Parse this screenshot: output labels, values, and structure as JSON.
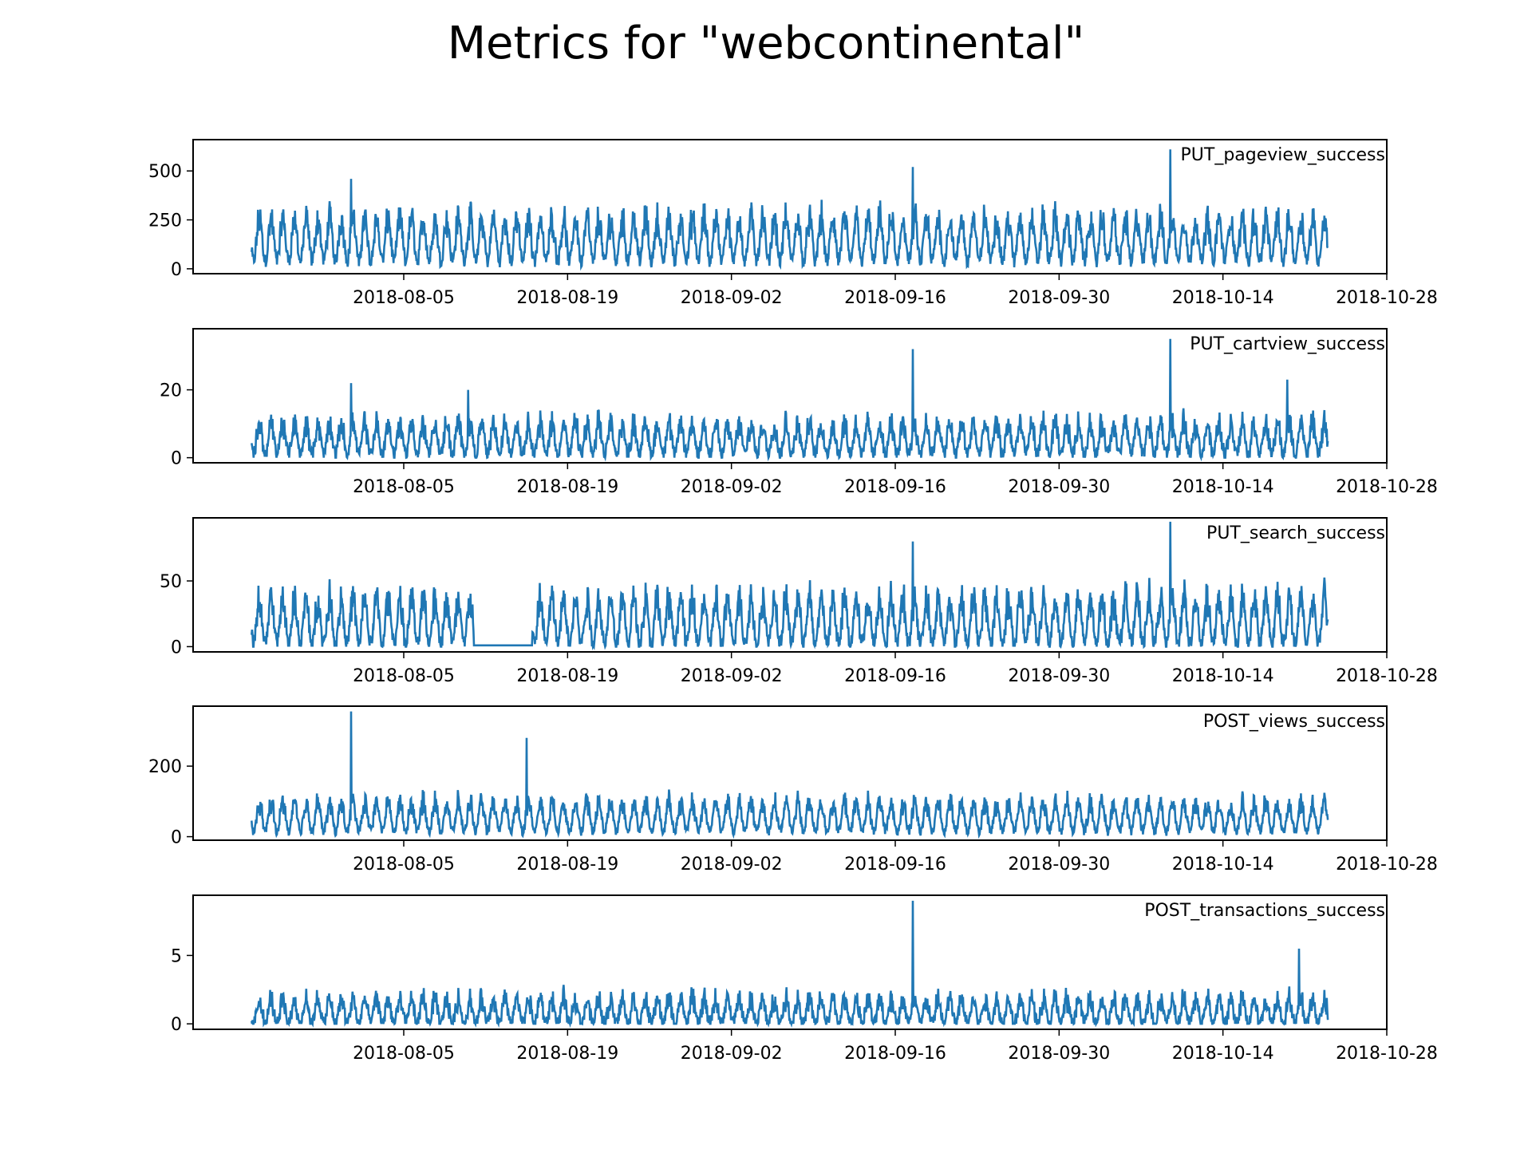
{
  "title": "Metrics for \"webcontinental\"",
  "chart_data": [
    {
      "type": "line",
      "series": [
        {
          "name": "PUT_pageview_success"
        }
      ],
      "x_range": [
        "2018-07-23",
        "2018-10-23"
      ],
      "xlim": [
        "2018-07-18",
        "2018-10-28"
      ],
      "x_ticks": [
        "2018-08-05",
        "2018-08-19",
        "2018-09-02",
        "2018-09-16",
        "2018-09-30",
        "2018-10-14",
        "2018-10-28"
      ],
      "y_ticks": [
        0,
        250,
        500
      ],
      "ylim": [
        -25,
        660
      ],
      "baseline": 40,
      "daily_peak": 240,
      "noise": 70,
      "spikes": [
        [
          "2018-07-31",
          460
        ],
        [
          "2018-09-17",
          520
        ],
        [
          "2018-10-09",
          610
        ]
      ],
      "gaps": [],
      "color": "#1f77b4",
      "legend": "top-right"
    },
    {
      "type": "line",
      "series": [
        {
          "name": "PUT_cartview_success"
        }
      ],
      "x_range": [
        "2018-07-23",
        "2018-10-23"
      ],
      "xlim": [
        "2018-07-18",
        "2018-10-28"
      ],
      "x_ticks": [
        "2018-08-05",
        "2018-08-19",
        "2018-09-02",
        "2018-09-16",
        "2018-09-30",
        "2018-10-14",
        "2018-10-28"
      ],
      "y_ticks": [
        0,
        20
      ],
      "ylim": [
        -1.5,
        38
      ],
      "baseline": 1,
      "daily_peak": 10,
      "noise": 4,
      "spikes": [
        [
          "2018-07-31",
          22
        ],
        [
          "2018-08-10",
          20
        ],
        [
          "2018-09-17",
          32
        ],
        [
          "2018-10-09",
          35
        ],
        [
          "2018-10-19",
          23
        ]
      ],
      "gaps": [],
      "color": "#1f77b4",
      "legend": "top-right"
    },
    {
      "type": "line",
      "series": [
        {
          "name": "PUT_search_success"
        }
      ],
      "x_range": [
        "2018-07-23",
        "2018-10-23"
      ],
      "xlim": [
        "2018-07-18",
        "2018-10-28"
      ],
      "x_ticks": [
        "2018-08-05",
        "2018-08-19",
        "2018-09-02",
        "2018-09-16",
        "2018-09-30",
        "2018-10-14",
        "2018-10-28"
      ],
      "y_ticks": [
        0,
        50
      ],
      "ylim": [
        -4,
        98
      ],
      "baseline": 2,
      "daily_peak": 38,
      "noise": 12,
      "spikes": [
        [
          "2018-09-17",
          80
        ],
        [
          "2018-10-09",
          95
        ]
      ],
      "gaps": [
        [
          "2018-08-11",
          "2018-08-16",
          1
        ]
      ],
      "color": "#1f77b4",
      "legend": "top-right"
    },
    {
      "type": "line",
      "series": [
        {
          "name": "POST_views_success"
        }
      ],
      "x_range": [
        "2018-07-23",
        "2018-10-23"
      ],
      "xlim": [
        "2018-07-18",
        "2018-10-28"
      ],
      "x_ticks": [
        "2018-08-05",
        "2018-08-19",
        "2018-09-02",
        "2018-09-16",
        "2018-09-30",
        "2018-10-14",
        "2018-10-28"
      ],
      "y_ticks": [
        0,
        200
      ],
      "ylim": [
        -10,
        370
      ],
      "baseline": 15,
      "daily_peak": 90,
      "noise": 25,
      "spikes": [
        [
          "2018-07-31",
          355
        ],
        [
          "2018-08-15",
          280
        ]
      ],
      "gaps": [],
      "color": "#1f77b4",
      "legend": "top-right"
    },
    {
      "type": "line",
      "series": [
        {
          "name": "POST_transactions_success"
        }
      ],
      "x_range": [
        "2018-07-23",
        "2018-10-23"
      ],
      "xlim": [
        "2018-07-18",
        "2018-10-28"
      ],
      "x_ticks": [
        "2018-08-05",
        "2018-08-19",
        "2018-09-02",
        "2018-09-16",
        "2018-09-30",
        "2018-10-14",
        "2018-10-28"
      ],
      "y_ticks": [
        0,
        5
      ],
      "ylim": [
        -0.4,
        9.4
      ],
      "baseline": 0,
      "daily_peak": 2,
      "noise": 1,
      "spikes": [
        [
          "2018-09-17",
          9
        ],
        [
          "2018-10-20",
          5.5
        ]
      ],
      "gaps": [],
      "color": "#1f77b4",
      "legend": "top-right"
    }
  ]
}
